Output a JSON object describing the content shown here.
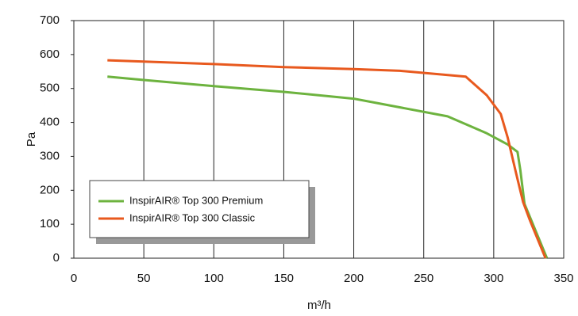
{
  "chart_data": {
    "type": "line",
    "x_label": "m³/h",
    "y_label": "Pa",
    "series": [
      {
        "name": "InspirAIR® Top 300 Premium",
        "color": "#6db33f",
        "x": [
          24,
          50,
          100,
          150,
          200,
          267,
          295,
          310,
          317,
          319,
          322,
          330,
          338
        ],
        "values": [
          535,
          525,
          507,
          490,
          470,
          418,
          368,
          335,
          313,
          260,
          160,
          80,
          0
        ]
      },
      {
        "name": "InspirAIR® Top 300 Classic",
        "color": "#e8591e",
        "x": [
          24,
          100,
          150,
          200,
          233,
          280,
          295,
          305,
          310,
          316,
          321,
          326,
          337
        ],
        "values": [
          583,
          572,
          563,
          557,
          552,
          535,
          480,
          425,
          355,
          250,
          165,
          110,
          0
        ]
      }
    ],
    "xlim": [
      0,
      350
    ],
    "xticks": [
      0,
      50,
      100,
      150,
      200,
      250,
      300,
      350
    ],
    "ylim": [
      0,
      700
    ],
    "yticks": [
      0,
      100,
      200,
      300,
      400,
      500,
      600,
      700
    ],
    "grid": "x"
  }
}
